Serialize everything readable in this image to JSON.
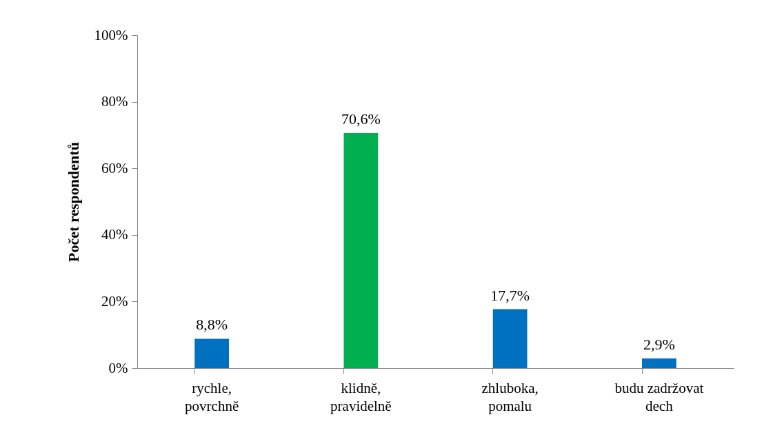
{
  "chart_data": {
    "type": "bar",
    "ylabel": "Počet respondentů",
    "categories": [
      "rychle, povrchně",
      "klidně, pravidelně",
      "zhluboka, pomalu",
      "budu zadržovat dech"
    ],
    "values": [
      8.8,
      70.6,
      17.7,
      2.9
    ],
    "colors": [
      "#0070c0",
      "#00b050",
      "#0070c0",
      "#0070c0"
    ],
    "value_labels": [
      "8,8%",
      "70,6%",
      "17,7%",
      "2,9%"
    ],
    "ylim": [
      0,
      100
    ],
    "yticks": [
      {
        "value": 0,
        "label": "0%"
      },
      {
        "value": 20,
        "label": "20%"
      },
      {
        "value": 40,
        "label": "40%"
      },
      {
        "value": 60,
        "label": "60%"
      },
      {
        "value": 80,
        "label": "80%"
      },
      {
        "value": 100,
        "label": "100%"
      }
    ],
    "grid": false
  }
}
